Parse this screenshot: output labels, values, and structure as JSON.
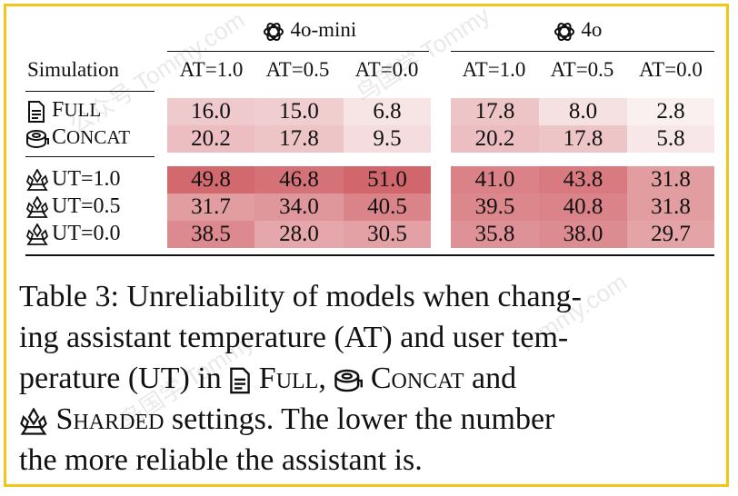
{
  "header": {
    "model_left": "4o-mini",
    "model_right": "4o",
    "simulation_label": "Simulation",
    "at_columns": [
      "AT=1.0",
      "AT=0.5",
      "AT=0.0"
    ]
  },
  "rows": [
    {
      "label_first": "F",
      "label_rest": "ULL",
      "icon": "document-icon",
      "values": [
        "16.0",
        "15.0",
        "6.8",
        "17.8",
        "8.0",
        "2.8"
      ]
    },
    {
      "label_first": "C",
      "label_rest": "ONCAT",
      "icon": "tape-roll-icon",
      "values": [
        "20.2",
        "17.8",
        "9.5",
        "20.2",
        "17.8",
        "5.8"
      ]
    },
    {
      "label": "UT=1.0",
      "icon": "crystal-icon",
      "values": [
        "49.8",
        "46.8",
        "51.0",
        "41.0",
        "43.8",
        "31.8"
      ]
    },
    {
      "label": "UT=0.5",
      "icon": "crystal-icon",
      "values": [
        "31.7",
        "34.0",
        "40.5",
        "39.5",
        "40.8",
        "31.8"
      ]
    },
    {
      "label": "UT=0.0",
      "icon": "crystal-icon",
      "values": [
        "38.5",
        "28.0",
        "30.5",
        "35.8",
        "38.0",
        "29.7"
      ]
    }
  ],
  "caption": {
    "line1": "Table 3: Unreliability of models when chang-",
    "line2": "ing assistant temperature (AT) and user tem-",
    "line3_a": "perature (UT) in",
    "line3_full": "Full",
    "line3_b": ",",
    "line3_concat": "Concat",
    "line3_c": "and",
    "line4_sharded": "Sharded",
    "line4_rest": "settings. The lower the number",
    "line5": "the more reliable the assistant is."
  },
  "watermark": [
    "公众号 Tommy.com",
    "鸟国学 Tommy",
    "Tommy.com"
  ],
  "colors": {
    "frame": "#f2c519",
    "heat_base": "#c8464e"
  }
}
